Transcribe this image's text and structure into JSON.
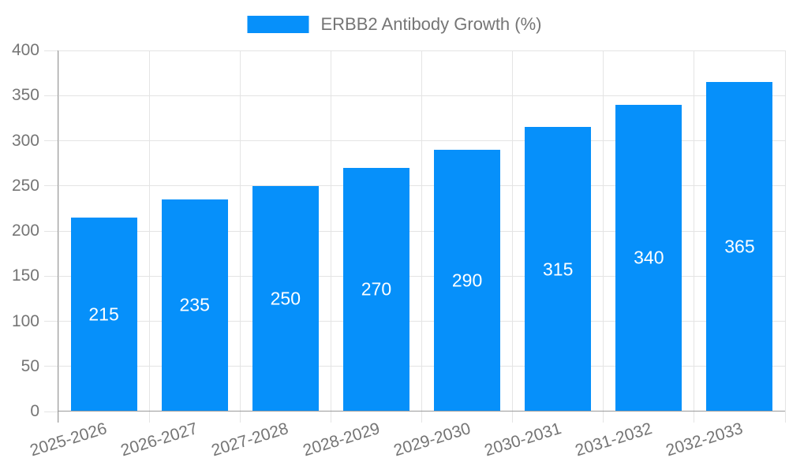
{
  "legend": {
    "label": "ERBB2 Antibody Growth (%)"
  },
  "colors": {
    "bar": "#0690FA",
    "grid": "#e4e4e4",
    "axis": "#9b9b9b",
    "tick_text": "#757575",
    "bar_label_text": "#ffffff",
    "background": "#ffffff"
  },
  "chart_data": {
    "type": "bar",
    "title": "ERBB2 Antibody Growth (%)",
    "categories": [
      "2025-2026",
      "2026-2027",
      "2027-2028",
      "2028-2029",
      "2029-2030",
      "2030-2031",
      "2031-2032",
      "2032-2033"
    ],
    "values": [
      215,
      235,
      250,
      270,
      290,
      315,
      340,
      365
    ],
    "series": [
      {
        "name": "ERBB2 Antibody Growth (%)",
        "values": [
          215,
          235,
          250,
          270,
          290,
          315,
          340,
          365
        ]
      }
    ],
    "xlabel": "",
    "ylabel": "",
    "ylim": [
      0,
      400
    ],
    "ytick_step": 50,
    "yticks": [
      0,
      50,
      100,
      150,
      200,
      250,
      300,
      350,
      400
    ],
    "grid": true,
    "legend_position": "top-center",
    "value_labels_position": "inside-center",
    "x_label_rotation_deg": -17,
    "bar_color": "#0690FA"
  }
}
